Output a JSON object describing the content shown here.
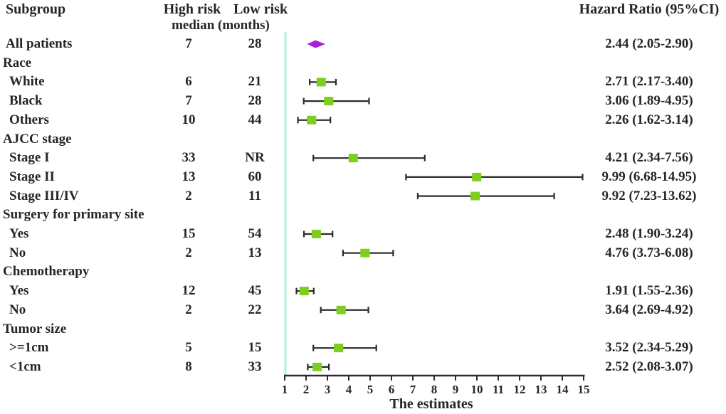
{
  "header": {
    "subgroup": "Subgroup",
    "high_risk": "High risk",
    "low_risk": "Low risk",
    "median_note": "median (months)",
    "hazard_ratio": "Hazard Ratio (95%CI)"
  },
  "axis": {
    "label": "The estimates",
    "min": 1,
    "max": 15,
    "ticks": [
      1,
      2,
      3,
      4,
      5,
      6,
      7,
      8,
      9,
      10,
      11,
      12,
      13,
      14,
      15
    ]
  },
  "colors": {
    "text": "#262626",
    "bar": "#2b2b2b",
    "square": "#7dce1e",
    "diamond": "#ab1ed7",
    "reference_line": "#a8f4d6"
  },
  "rows": [
    {
      "kind": "data",
      "label": "All patients",
      "high": "7",
      "low": "28",
      "hr_text": "2.44 (2.05-2.90)",
      "est": 2.44,
      "lo": 2.05,
      "hi": 2.9,
      "marker": "diamond"
    },
    {
      "kind": "group",
      "label": "Race"
    },
    {
      "kind": "data",
      "indent": true,
      "label": "White",
      "high": "6",
      "low": "21",
      "hr_text": "2.71 (2.17-3.40)",
      "est": 2.71,
      "lo": 2.17,
      "hi": 3.4,
      "marker": "square"
    },
    {
      "kind": "data",
      "indent": true,
      "label": "Black",
      "high": "7",
      "low": "28",
      "hr_text": "3.06 (1.89-4.95)",
      "est": 3.06,
      "lo": 1.89,
      "hi": 4.95,
      "marker": "square"
    },
    {
      "kind": "data",
      "indent": true,
      "label": "Others",
      "high": "10",
      "low": "44",
      "hr_text": "2.26 (1.62-3.14)",
      "est": 2.26,
      "lo": 1.62,
      "hi": 3.14,
      "marker": "square"
    },
    {
      "kind": "group",
      "label": "AJCC stage"
    },
    {
      "kind": "data",
      "indent": true,
      "label": "Stage I",
      "high": "33",
      "low": "NR",
      "hr_text": "4.21 (2.34-7.56)",
      "est": 4.21,
      "lo": 2.34,
      "hi": 7.56,
      "marker": "square"
    },
    {
      "kind": "data",
      "indent": true,
      "label": "Stage II",
      "high": "13",
      "low": "60",
      "hr_text": "9.99 (6.68-14.95)",
      "est": 9.99,
      "lo": 6.68,
      "hi": 14.95,
      "marker": "square"
    },
    {
      "kind": "data",
      "indent": true,
      "label": "Stage III/IV",
      "high": "2",
      "low": "11",
      "hr_text": "9.92 (7.23-13.62)",
      "est": 9.92,
      "lo": 7.23,
      "hi": 13.62,
      "marker": "square"
    },
    {
      "kind": "group",
      "label": "Surgery for primary site"
    },
    {
      "kind": "data",
      "indent": true,
      "label": "Yes",
      "high": "15",
      "low": "54",
      "hr_text": "2.48 (1.90-3.24)",
      "est": 2.48,
      "lo": 1.9,
      "hi": 3.24,
      "marker": "square"
    },
    {
      "kind": "data",
      "indent": true,
      "label": "No",
      "high": "2",
      "low": "13",
      "hr_text": "4.76 (3.73-6.08)",
      "est": 4.76,
      "lo": 3.73,
      "hi": 6.08,
      "marker": "square"
    },
    {
      "kind": "group",
      "label": "Chemotherapy"
    },
    {
      "kind": "data",
      "indent": true,
      "label": "Yes",
      "high": "12",
      "low": "45",
      "hr_text": "1.91 (1.55-2.36)",
      "est": 1.91,
      "lo": 1.55,
      "hi": 2.36,
      "marker": "square"
    },
    {
      "kind": "data",
      "indent": true,
      "label": "No",
      "high": "2",
      "low": "22",
      "hr_text": "3.64 (2.69-4.92)",
      "est": 3.64,
      "lo": 2.69,
      "hi": 4.92,
      "marker": "square"
    },
    {
      "kind": "group",
      "label": "Tumor size"
    },
    {
      "kind": "data",
      "indent": true,
      "label": ">=1cm",
      "high": "5",
      "low": "15",
      "hr_text": "3.52 (2.34-5.29)",
      "est": 3.52,
      "lo": 2.34,
      "hi": 5.29,
      "marker": "square"
    },
    {
      "kind": "data",
      "indent": true,
      "label": "<1cm",
      "high": "8",
      "low": "33",
      "hr_text": "2.52 (2.08-3.07)",
      "est": 2.52,
      "lo": 2.08,
      "hi": 3.07,
      "marker": "square"
    }
  ],
  "chart_data": {
    "type": "scatter",
    "subtype": "forest-plot",
    "title": "",
    "xlabel": "The estimates",
    "ylabel": "",
    "xlim": [
      1,
      15
    ],
    "x_ticks": [
      1,
      2,
      3,
      4,
      5,
      6,
      7,
      8,
      9,
      10,
      11,
      12,
      13,
      14,
      15
    ],
    "reference_line_x": 1,
    "grid": false,
    "legend": false,
    "points": [
      {
        "label": "All patients",
        "hr": 2.44,
        "ci_low": 2.05,
        "ci_high": 2.9,
        "marker": "diamond",
        "high_risk_median": 7,
        "low_risk_median": 28
      },
      {
        "label": "White",
        "group": "Race",
        "hr": 2.71,
        "ci_low": 2.17,
        "ci_high": 3.4,
        "marker": "square",
        "high_risk_median": 6,
        "low_risk_median": 21
      },
      {
        "label": "Black",
        "group": "Race",
        "hr": 3.06,
        "ci_low": 1.89,
        "ci_high": 4.95,
        "marker": "square",
        "high_risk_median": 7,
        "low_risk_median": 28
      },
      {
        "label": "Others",
        "group": "Race",
        "hr": 2.26,
        "ci_low": 1.62,
        "ci_high": 3.14,
        "marker": "square",
        "high_risk_median": 10,
        "low_risk_median": 44
      },
      {
        "label": "Stage I",
        "group": "AJCC stage",
        "hr": 4.21,
        "ci_low": 2.34,
        "ci_high": 7.56,
        "marker": "square",
        "high_risk_median": 33,
        "low_risk_median": "NR"
      },
      {
        "label": "Stage II",
        "group": "AJCC stage",
        "hr": 9.99,
        "ci_low": 6.68,
        "ci_high": 14.95,
        "marker": "square",
        "high_risk_median": 13,
        "low_risk_median": 60
      },
      {
        "label": "Stage III/IV",
        "group": "AJCC stage",
        "hr": 9.92,
        "ci_low": 7.23,
        "ci_high": 13.62,
        "marker": "square",
        "high_risk_median": 2,
        "low_risk_median": 11
      },
      {
        "label": "Yes",
        "group": "Surgery for primary site",
        "hr": 2.48,
        "ci_low": 1.9,
        "ci_high": 3.24,
        "marker": "square",
        "high_risk_median": 15,
        "low_risk_median": 54
      },
      {
        "label": "No",
        "group": "Surgery for primary site",
        "hr": 4.76,
        "ci_low": 3.73,
        "ci_high": 6.08,
        "marker": "square",
        "high_risk_median": 2,
        "low_risk_median": 13
      },
      {
        "label": "Yes",
        "group": "Chemotherapy",
        "hr": 1.91,
        "ci_low": 1.55,
        "ci_high": 2.36,
        "marker": "square",
        "high_risk_median": 12,
        "low_risk_median": 45
      },
      {
        "label": "No",
        "group": "Chemotherapy",
        "hr": 3.64,
        "ci_low": 2.69,
        "ci_high": 4.92,
        "marker": "square",
        "high_risk_median": 2,
        "low_risk_median": 22
      },
      {
        "label": ">=1cm",
        "group": "Tumor size",
        "hr": 3.52,
        "ci_low": 2.34,
        "ci_high": 5.29,
        "marker": "square",
        "high_risk_median": 5,
        "low_risk_median": 15
      },
      {
        "label": "<1cm",
        "group": "Tumor size",
        "hr": 2.52,
        "ci_low": 2.08,
        "ci_high": 3.07,
        "marker": "square",
        "high_risk_median": 8,
        "low_risk_median": 33
      }
    ]
  }
}
